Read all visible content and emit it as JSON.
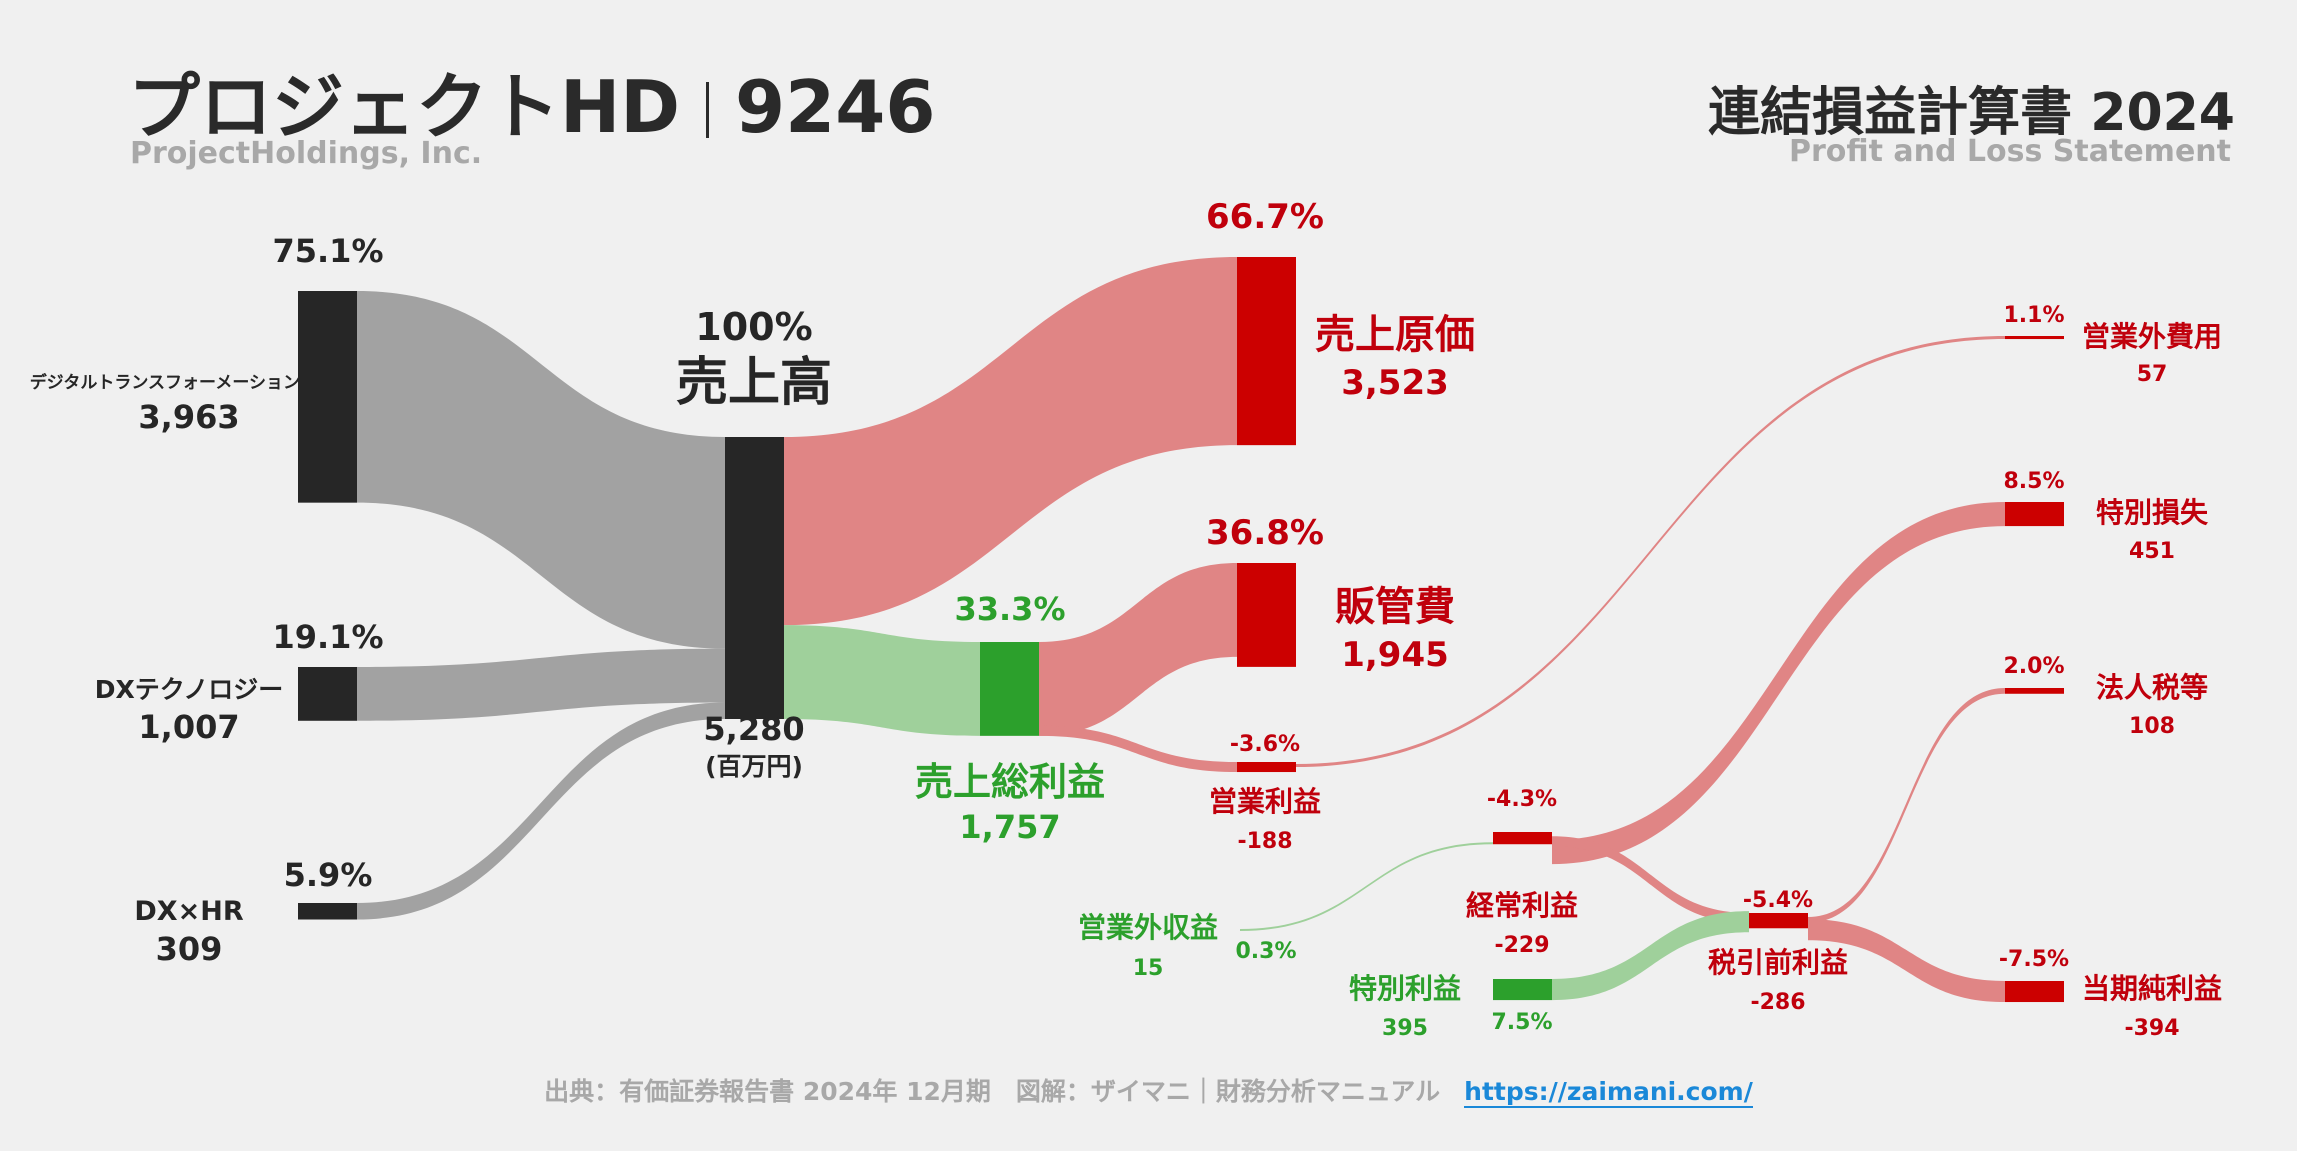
{
  "header": {
    "company": "プロジェクトHD",
    "code": "9246",
    "company_en": "ProjectHoldings, Inc.",
    "statement": "連結損益計算書 2024",
    "statement_en": "Profit and Loss Statement"
  },
  "footer": {
    "source": "出典：有価証券報告書 2024年 12月期　図解：ザイマニ｜財務分析マニュアル",
    "url": "https://zaimani.com/"
  },
  "colors": {
    "neutral": "#262626",
    "neutral_flow": "#a2a2a2",
    "profit": "#2ca02c",
    "profit_flow": "#9fd09b",
    "cost": "#cc0000",
    "cost_flow": "#e08585",
    "cost_text": "#c0000c"
  },
  "chart_data": {
    "type": "sankey",
    "unit": "(百万円)",
    "segments": [
      {
        "name": "デジタルトランスフォーメーション",
        "value": "3,963",
        "pct": "75.1%"
      },
      {
        "name": "DXテクノロジー",
        "value": "1,007",
        "pct": "19.1%"
      },
      {
        "name": "DX×HR",
        "value": "309",
        "pct": "5.9%"
      }
    ],
    "revenue": {
      "name": "売上高",
      "value": "5,280",
      "pct": "100%"
    },
    "cost_of_sales": {
      "name": "売上原価",
      "value": "3,523",
      "pct": "66.7%"
    },
    "gross_profit": {
      "name": "売上総利益",
      "value": "1,757",
      "pct": "33.3%"
    },
    "sga": {
      "name": "販管費",
      "value": "1,945",
      "pct": "36.8%"
    },
    "operating_income": {
      "name": "営業利益",
      "value": "-188",
      "pct": "-3.6%"
    },
    "non_operating_income": {
      "name": "営業外収益",
      "value": "15",
      "pct": "0.3%"
    },
    "non_operating_expenses": {
      "name": "営業外費用",
      "value": "57",
      "pct": "1.1%"
    },
    "ordinary_income": {
      "name": "経常利益",
      "value": "-229",
      "pct": "-4.3%"
    },
    "extraordinary_income": {
      "name": "特別利益",
      "value": "395",
      "pct": "7.5%"
    },
    "extraordinary_loss": {
      "name": "特別損失",
      "value": "451",
      "pct": "8.5%"
    },
    "pretax_income": {
      "name": "税引前利益",
      "value": "-286",
      "pct": "-5.4%"
    },
    "income_taxes": {
      "name": "法人税等",
      "value": "108",
      "pct": "2.0%"
    },
    "net_income": {
      "name": "当期純利益",
      "value": "-394",
      "pct": "-7.5%"
    }
  }
}
